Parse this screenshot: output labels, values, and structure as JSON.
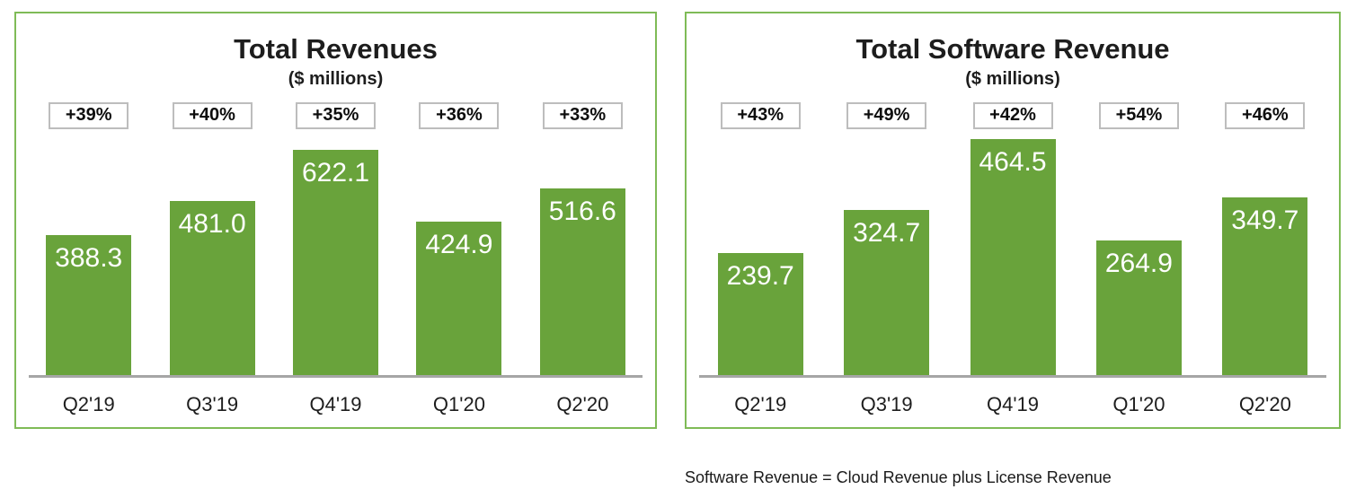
{
  "footnote": "Software Revenue = Cloud Revenue plus License Revenue",
  "colors": {
    "bar_green": "#69a33b",
    "panel_border": "#7fbb57",
    "badge_border": "#bdbdbd",
    "axis_line": "#a6a6a6",
    "value_label": "#ffffff",
    "text": "#1d1d1d"
  },
  "chart_data": [
    {
      "type": "bar",
      "title": "Total Revenues",
      "subtitle": "($ millions)",
      "categories": [
        "Q2'19",
        "Q3'19",
        "Q4'19",
        "Q1'20",
        "Q2'20"
      ],
      "values": [
        388.3,
        481.0,
        622.1,
        424.9,
        516.6
      ],
      "value_labels": [
        "388.3",
        "481.0",
        "622.1",
        "424.9",
        "516.6"
      ],
      "growth_labels": [
        "+39%",
        "+40%",
        "+35%",
        "+36%",
        "+33%"
      ],
      "xlabel": "",
      "ylabel": "",
      "ylim": [
        0,
        660
      ],
      "grid": false,
      "legend": false,
      "bar_label_position": "inside-end",
      "bar_color": "#69a33b"
    },
    {
      "type": "bar",
      "title": "Total Software Revenue",
      "subtitle": "($ millions)",
      "categories": [
        "Q2'19",
        "Q3'19",
        "Q4'19",
        "Q1'20",
        "Q2'20"
      ],
      "values": [
        239.7,
        324.7,
        464.5,
        264.9,
        349.7
      ],
      "value_labels": [
        "239.7",
        "324.7",
        "464.5",
        "264.9",
        "349.7"
      ],
      "growth_labels": [
        "+43%",
        "+49%",
        "+42%",
        "+54%",
        "+46%"
      ],
      "xlabel": "",
      "ylabel": "",
      "ylim": [
        0,
        470
      ],
      "grid": false,
      "legend": false,
      "bar_label_position": "inside-end",
      "bar_color": "#69a33b"
    }
  ]
}
